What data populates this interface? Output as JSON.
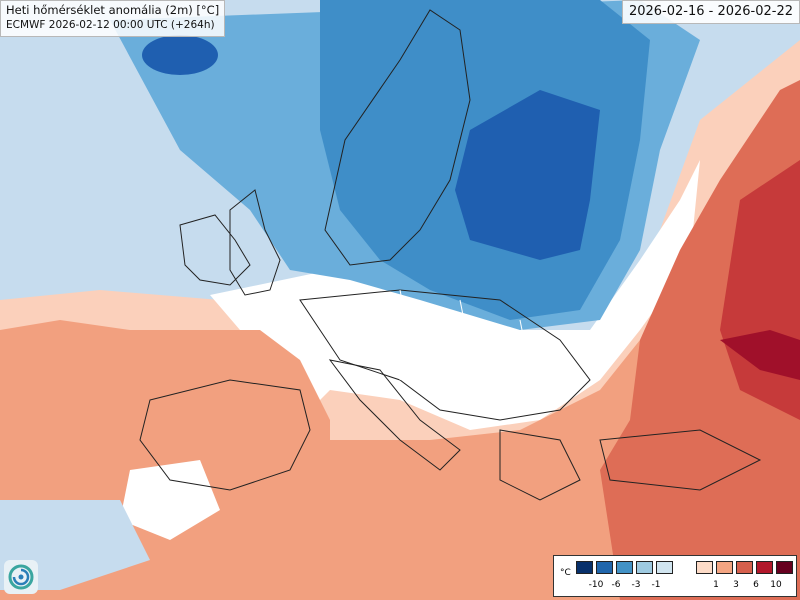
{
  "title": "Heti hőmérséklet anomália (2m) [°C]",
  "subtitle": "ECMWF 2026-02-12 00:00 UTC (+264h)",
  "period": "2026-02-16 - 2026-02-22",
  "legend": {
    "unit": "°C",
    "cold_ticks": [
      "-10",
      "-6",
      "-3",
      "-1"
    ],
    "warm_ticks": [
      "1",
      "3",
      "6",
      "10"
    ],
    "cold_colors": [
      "#08306b",
      "#2166ac",
      "#4292c6",
      "#9ecae1",
      "#d1e5f0"
    ],
    "warm_colors": [
      "#fddbc7",
      "#f4a582",
      "#d6604d",
      "#b2182b",
      "#67001f"
    ]
  },
  "map_colors": {
    "deep_cold": "#1f5fb0",
    "cold": "#3f8ec8",
    "mid_cold": "#6aaedb",
    "light_cold": "#c6dcee",
    "neutral": "#ffffff",
    "light_warm": "#fbd0bb",
    "warm": "#f2a07f",
    "mid_warm": "#de6d56",
    "hot": "#c63a3a",
    "very_hot": "#a0102a"
  },
  "logo_icon": "ecmwf-swirl-icon"
}
